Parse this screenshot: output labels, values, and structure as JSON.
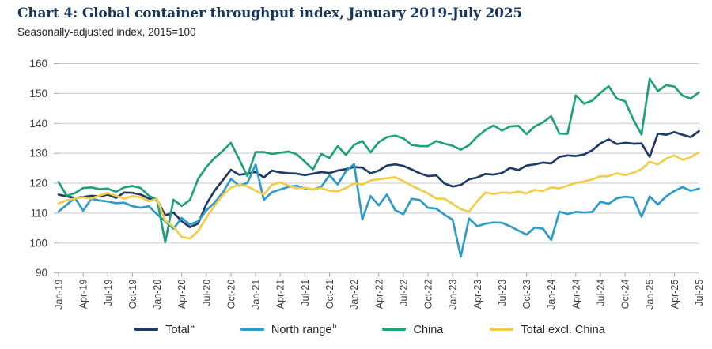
{
  "chart_data": {
    "type": "line",
    "title": "Chart 4: Global container throughput index, January 2019-July 2025",
    "subtitle": "Seasonally-adjusted index, 2015=100",
    "xlabel": "",
    "ylabel": "Seasonally-adjusted index, 2015=100",
    "ylim": [
      90,
      160
    ],
    "yticks": [
      90,
      100,
      110,
      120,
      130,
      140,
      150,
      160
    ],
    "grid": "horizontal",
    "legend_position": "bottom",
    "x_frequency": "monthly",
    "x_range": [
      "Jan-19",
      "Jul-25"
    ],
    "xtick_labels": [
      "Jan-19",
      "Apr-19",
      "Jul-19",
      "Oct-19",
      "Jan-20",
      "Apr-20",
      "Jul-20",
      "Oct-20",
      "Jan-21",
      "Apr-21",
      "Jul-21",
      "Oct-21",
      "Jan-22",
      "Apr-22",
      "Jul-22",
      "Oct-22",
      "Jan-23",
      "Apr-23",
      "Jul-23",
      "Oct-23",
      "Jan-24",
      "Apr-24",
      "Jul-24",
      "Oct-24",
      "Jan-25",
      "Apr-25",
      "Jul-25"
    ],
    "series": [
      {
        "name": "Total",
        "sup": "a",
        "color": "#1F3A64",
        "values": [
          116.2,
          115.6,
          115.1,
          115.4,
          115.8,
          115.6,
          116.2,
          115.1,
          116.9,
          116.8,
          116.2,
          114.9,
          114.3,
          109.3,
          110.2,
          107.3,
          105.3,
          106.5,
          113.0,
          117.5,
          121.0,
          124.5,
          122.8,
          123.2,
          123.8,
          121.9,
          124.2,
          123.6,
          123.3,
          123.2,
          122.7,
          123.2,
          123.7,
          123.4,
          124.2,
          124.7,
          125.4,
          125.2,
          123.3,
          124.2,
          125.9,
          126.3,
          125.8,
          124.6,
          123.3,
          122.4,
          122.6,
          119.9,
          118.9,
          119.4,
          121.3,
          121.9,
          123.1,
          122.9,
          123.4,
          125.1,
          124.4,
          125.9,
          126.3,
          126.9,
          126.6,
          128.8,
          129.3,
          129.1,
          129.6,
          131.0,
          133.3,
          134.7,
          133.1,
          133.5,
          133.2,
          133.3,
          128.8,
          136.6,
          136.2,
          137.1,
          136.2,
          135.4,
          137.4
        ]
      },
      {
        "name": "North range",
        "sup": "b",
        "color": "#2E9BC9",
        "values": [
          110.5,
          112.8,
          115.1,
          110.8,
          114.8,
          114.2,
          113.9,
          113.3,
          113.5,
          112.3,
          111.8,
          112.3,
          109.6,
          107.3,
          104.8,
          108.4,
          106.2,
          107.3,
          110.9,
          113.5,
          116.9,
          121.4,
          119.2,
          120.1,
          126.2,
          114.4,
          117.0,
          117.9,
          118.8,
          119.2,
          118.3,
          117.9,
          118.8,
          122.7,
          119.6,
          124.0,
          126.4,
          107.9,
          115.7,
          112.6,
          116.2,
          111.0,
          109.6,
          114.8,
          114.4,
          111.8,
          111.5,
          109.5,
          107.8,
          95.5,
          108.2,
          105.6,
          106.5,
          106.9,
          106.8,
          105.6,
          104.2,
          102.8,
          105.2,
          104.8,
          101.0,
          110.5,
          109.7,
          110.4,
          110.2,
          110.4,
          113.8,
          113.1,
          115.0,
          115.5,
          115.2,
          108.8,
          115.6,
          112.9,
          115.6,
          117.4,
          118.7,
          117.5,
          118.2
        ]
      },
      {
        "name": "China",
        "sup": "",
        "color": "#1FA17C",
        "values": [
          120.4,
          115.8,
          116.7,
          118.4,
          118.6,
          118.0,
          118.2,
          117.1,
          118.6,
          119.1,
          118.4,
          115.8,
          114.5,
          100.3,
          114.5,
          112.4,
          114.4,
          121.4,
          125.4,
          128.4,
          130.8,
          133.5,
          128.0,
          122.4,
          130.4,
          130.4,
          129.8,
          130.2,
          130.6,
          129.7,
          127.2,
          124.6,
          129.8,
          128.4,
          132.4,
          129.5,
          132.8,
          134.1,
          130.3,
          133.7,
          135.4,
          135.9,
          135.0,
          132.8,
          132.4,
          132.4,
          134.1,
          133.2,
          132.5,
          131.2,
          132.7,
          135.6,
          137.8,
          139.3,
          137.6,
          139.0,
          139.2,
          136.4,
          139.0,
          140.3,
          142.4,
          136.6,
          136.5,
          149.4,
          146.6,
          147.6,
          150.2,
          152.4,
          148.3,
          147.4,
          141.3,
          136.3,
          154.9,
          150.8,
          152.8,
          152.3,
          149.3,
          148.3,
          150.4
        ]
      },
      {
        "name": "Total excl. China",
        "sup": "",
        "color": "#F2CC49",
        "values": [
          113.2,
          114.3,
          114.9,
          115.3,
          114.9,
          115.9,
          116.7,
          115.8,
          114.9,
          115.7,
          115.3,
          114.0,
          114.7,
          107.5,
          105.5,
          102.0,
          101.5,
          104.0,
          108.5,
          112.5,
          116.0,
          118.5,
          119.5,
          119.0,
          117.5,
          116.3,
          119.5,
          120.3,
          119.2,
          118.3,
          118.5,
          117.9,
          118.4,
          117.5,
          117.3,
          118.4,
          119.9,
          119.6,
          120.9,
          121.3,
          121.7,
          122.0,
          120.7,
          119.2,
          117.9,
          116.6,
          114.9,
          114.8,
          113.1,
          111.3,
          110.5,
          114.0,
          116.9,
          116.4,
          116.9,
          116.7,
          117.2,
          116.6,
          117.8,
          117.4,
          118.6,
          118.3,
          119.2,
          120.1,
          120.6,
          121.3,
          122.3,
          122.4,
          123.3,
          122.7,
          123.5,
          124.7,
          127.2,
          126.3,
          128.2,
          129.3,
          127.8,
          128.7,
          130.3
        ]
      }
    ]
  },
  "colors": {
    "title_text": "#17365D",
    "axis_text": "#3C3C3C",
    "gridline": "#C9C9C9",
    "tick": "#ABABAB",
    "background": "#FFFFFF"
  }
}
